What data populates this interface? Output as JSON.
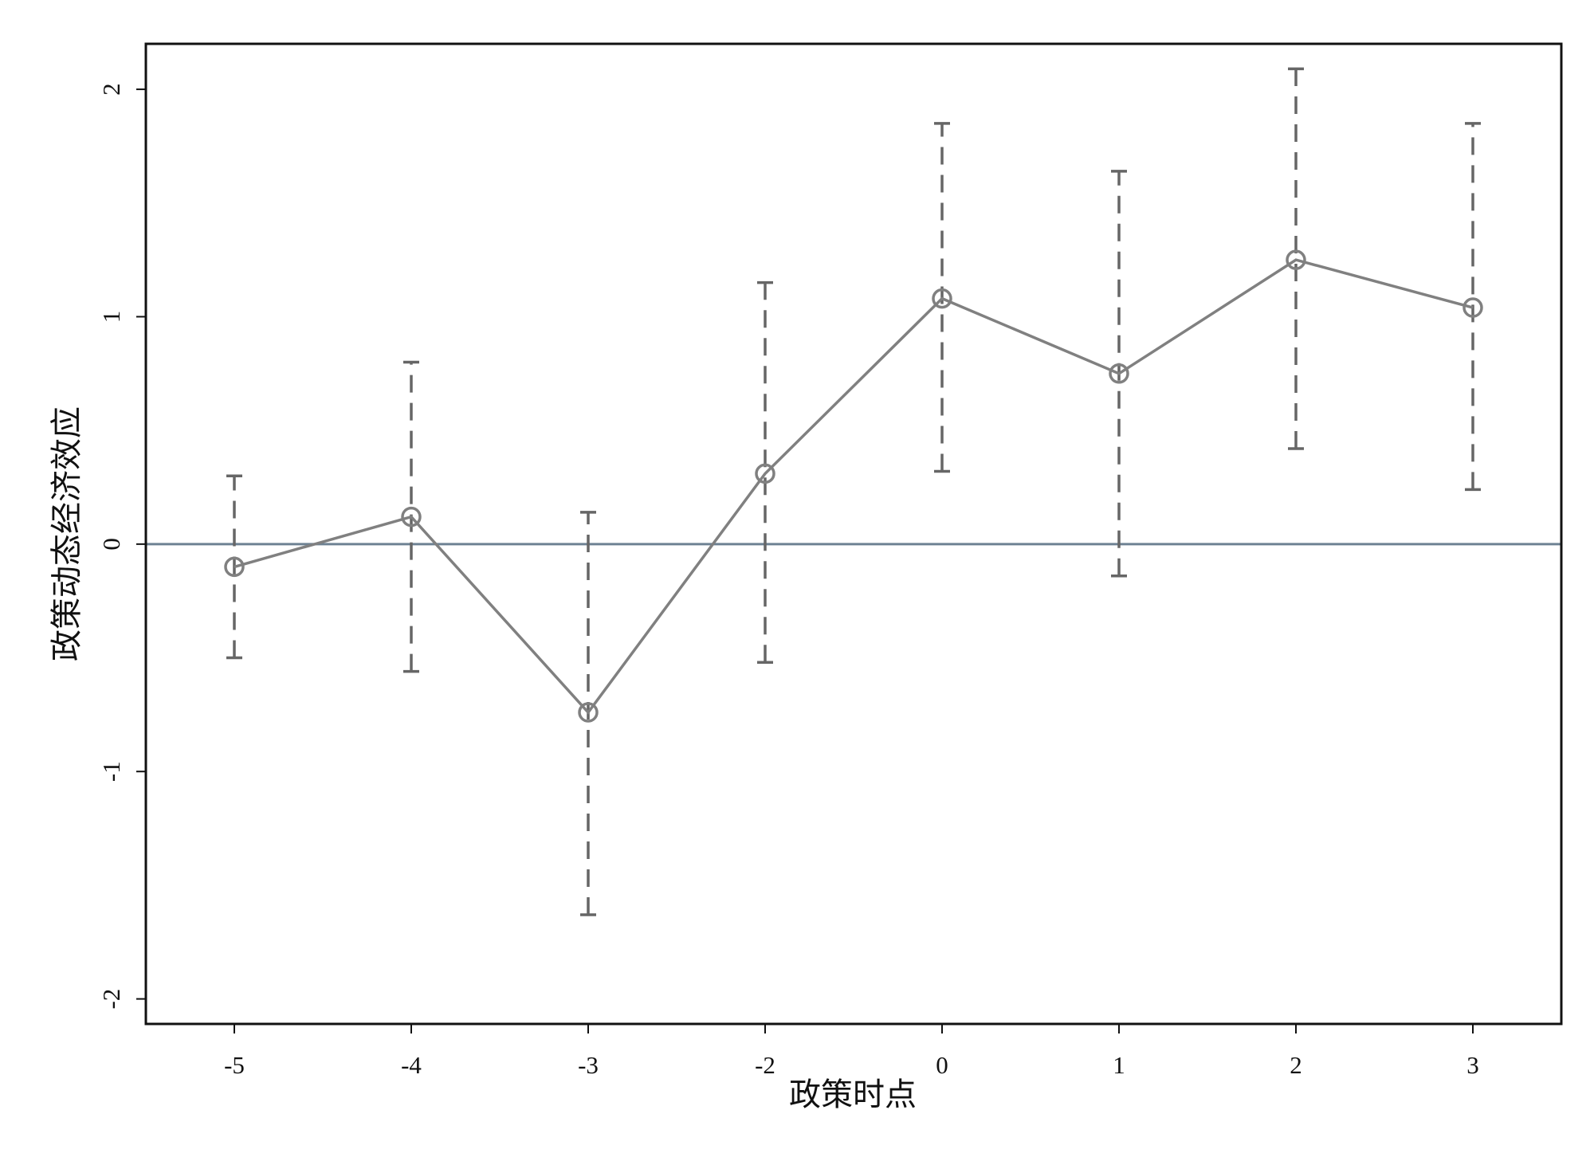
{
  "chart_data": {
    "type": "errorbar_line",
    "xlabel": "政策时点",
    "ylabel": "政策动态经济效应",
    "categories": [
      "-5",
      "-4",
      "-3",
      "-2",
      "0",
      "1",
      "2",
      "3"
    ],
    "values": [
      -0.1,
      0.12,
      -0.74,
      0.31,
      1.08,
      0.75,
      1.25,
      1.04
    ],
    "lower": [
      -0.5,
      -0.56,
      -1.63,
      -0.52,
      0.32,
      -0.14,
      0.42,
      0.24
    ],
    "upper": [
      0.3,
      0.8,
      0.14,
      1.15,
      1.85,
      1.64,
      2.09,
      1.85
    ],
    "color": "#808080",
    "errorbar_color": "#666666",
    "refline": 0,
    "refline_color": "#6e8293",
    "ylim": [
      -2.11,
      2.2
    ],
    "yticks": [
      -2,
      -1,
      0,
      1,
      2
    ]
  }
}
